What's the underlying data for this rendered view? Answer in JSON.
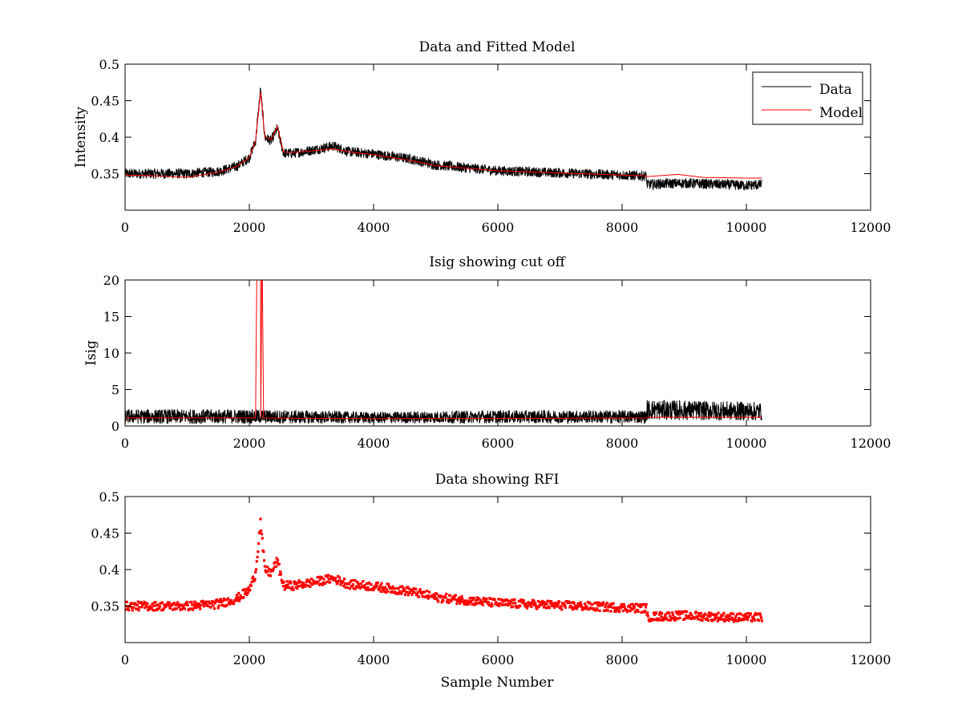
{
  "figure": {
    "background": "#ffffff"
  },
  "colors": {
    "data": "#000000",
    "model": "#ff0000",
    "axes": "#000000"
  },
  "chart_data": [
    {
      "id": "panel1",
      "type": "line",
      "title": "Data and Fitted Model",
      "xlabel": "",
      "ylabel": "Intensity",
      "xlim": [
        0,
        12000
      ],
      "ylim": [
        0.3,
        0.5
      ],
      "xticks": [
        0,
        2000,
        4000,
        6000,
        8000,
        10000,
        12000
      ],
      "yticks": [
        0.35,
        0.4,
        0.45,
        0.5
      ],
      "xtick_labels": [
        "0",
        "2000",
        "4000",
        "6000",
        "8000",
        "10000",
        "12000"
      ],
      "ytick_labels": [
        "0.35",
        "0.4",
        "0.45",
        "0.5"
      ],
      "grid": false,
      "legend": {
        "position": "top-right",
        "entries": [
          "Data",
          "Model"
        ]
      },
      "series": [
        {
          "name": "Data",
          "color": "#000000",
          "noise_amplitude": 0.007,
          "x": [
            0,
            500,
            1000,
            1500,
            1800,
            2000,
            2100,
            2180,
            2250,
            2350,
            2450,
            2550,
            2700,
            3000,
            3350,
            3600,
            4000,
            4600,
            5000,
            6000,
            7000,
            8000,
            8390,
            8400,
            8600,
            9000,
            10000,
            10250
          ],
          "values": [
            0.35,
            0.35,
            0.35,
            0.353,
            0.36,
            0.372,
            0.395,
            0.465,
            0.4,
            0.395,
            0.412,
            0.378,
            0.378,
            0.382,
            0.388,
            0.38,
            0.377,
            0.37,
            0.362,
            0.354,
            0.351,
            0.348,
            0.347,
            0.335,
            0.336,
            0.337,
            0.334,
            0.335
          ]
        },
        {
          "name": "Model",
          "color": "#ff0000",
          "x": [
            0,
            500,
            1000,
            1500,
            1800,
            2000,
            2100,
            2180,
            2250,
            2350,
            2450,
            2550,
            2700,
            3000,
            3350,
            3600,
            4000,
            4600,
            5000,
            6000,
            7000,
            8000,
            8390,
            8400,
            8900,
            9300,
            10000,
            10250
          ],
          "values": [
            0.348,
            0.347,
            0.345,
            0.352,
            0.36,
            0.372,
            0.395,
            0.462,
            0.4,
            0.397,
            0.415,
            0.38,
            0.379,
            0.381,
            0.384,
            0.38,
            0.376,
            0.368,
            0.361,
            0.354,
            0.351,
            0.348,
            0.347,
            0.346,
            0.349,
            0.345,
            0.344,
            0.344
          ]
        }
      ]
    },
    {
      "id": "panel2",
      "type": "line",
      "title": "Isig showing cut off",
      "xlabel": "",
      "ylabel": "Isig",
      "xlim": [
        0,
        12000
      ],
      "ylim": [
        0,
        20
      ],
      "xticks": [
        0,
        2000,
        4000,
        6000,
        8000,
        10000,
        12000
      ],
      "yticks": [
        0,
        5,
        10,
        15,
        20
      ],
      "xtick_labels": [
        "0",
        "2000",
        "4000",
        "6000",
        "8000",
        "10000",
        "12000"
      ],
      "ytick_labels": [
        "0",
        "5",
        "10",
        "15",
        "20"
      ],
      "grid": false,
      "series": [
        {
          "color": "#000000",
          "x": [
            0,
            2000,
            4000,
            6000,
            8000,
            8390,
            8400,
            10250
          ],
          "values": [
            1.0,
            1.0,
            0.9,
            1.0,
            1.0,
            1.0,
            1.8,
            1.6
          ],
          "spread": [
            1.0,
            1.0,
            0.8,
            0.9,
            0.9,
            0.9,
            1.4,
            1.3
          ]
        },
        {
          "color": "#ff0000",
          "x": [
            0,
            2100,
            2110,
            2120,
            2125,
            2180,
            2185,
            2200,
            2210,
            2230,
            4000,
            8390,
            8400,
            10250
          ],
          "values": [
            1.1,
            1.1,
            10.5,
            20,
            20,
            20,
            1.1,
            20,
            20,
            1.1,
            1.0,
            1.1,
            1.2,
            1.2
          ],
          "cutoff": 1.1
        }
      ]
    },
    {
      "id": "panel3",
      "type": "scatter",
      "title": "Data showing RFI",
      "xlabel": "Sample Number",
      "ylabel": "",
      "xlim": [
        0,
        12000
      ],
      "ylim": [
        0.3,
        0.5
      ],
      "xticks": [
        0,
        2000,
        4000,
        6000,
        8000,
        10000,
        12000
      ],
      "yticks": [
        0.35,
        0.4,
        0.45,
        0.5
      ],
      "xtick_labels": [
        "0",
        "2000",
        "4000",
        "6000",
        "8000",
        "10000",
        "12000"
      ],
      "ytick_labels": [
        "0.35",
        "0.4",
        "0.45",
        "0.5"
      ],
      "grid": false,
      "series": [
        {
          "color": "#ff0000",
          "noise_amplitude": 0.006,
          "x": [
            0,
            500,
            1000,
            1500,
            1800,
            2000,
            2100,
            2180,
            2250,
            2350,
            2450,
            2550,
            2700,
            3000,
            3350,
            3600,
            4000,
            4600,
            5000,
            6000,
            7000,
            8000,
            8390,
            8400,
            8600,
            9000,
            10000,
            10250
          ],
          "values": [
            0.35,
            0.35,
            0.35,
            0.353,
            0.36,
            0.372,
            0.395,
            0.465,
            0.4,
            0.395,
            0.412,
            0.378,
            0.378,
            0.382,
            0.388,
            0.38,
            0.377,
            0.37,
            0.362,
            0.354,
            0.351,
            0.348,
            0.347,
            0.335,
            0.336,
            0.337,
            0.334,
            0.335
          ]
        }
      ]
    }
  ]
}
